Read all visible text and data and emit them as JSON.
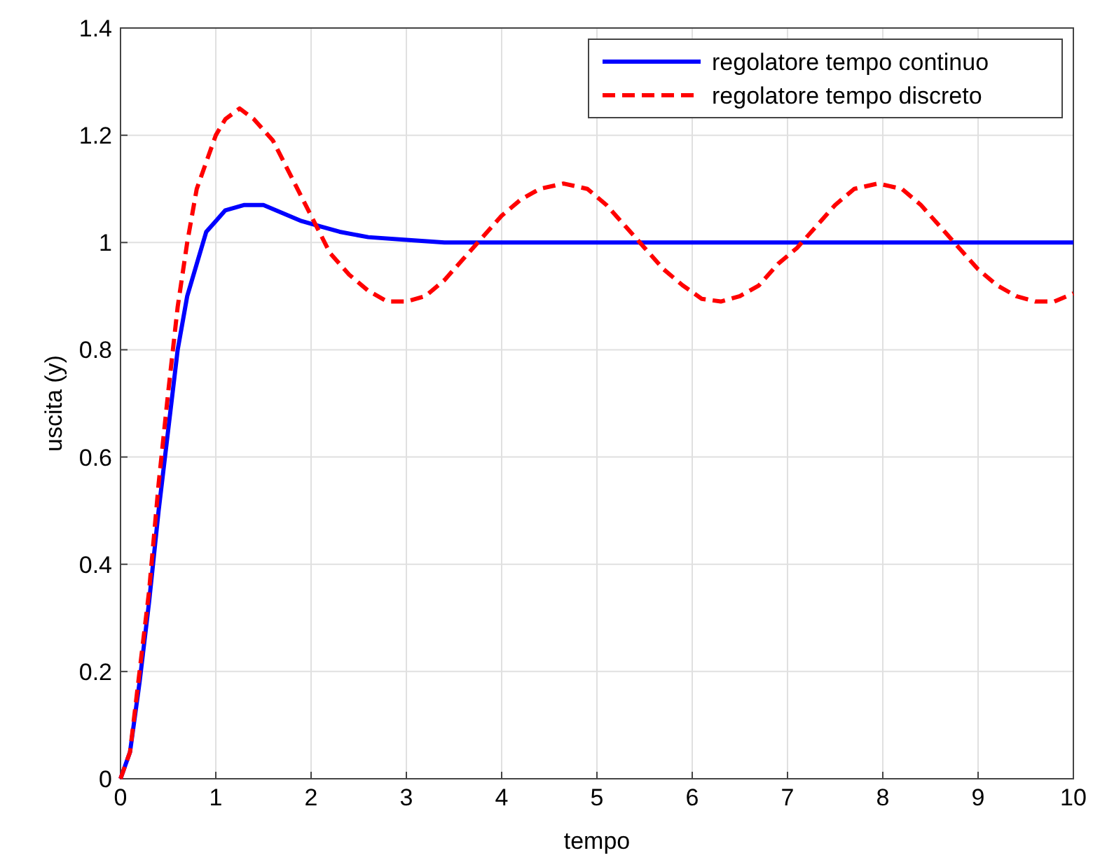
{
  "chart_data": {
    "type": "line",
    "xlabel": "tempo",
    "ylabel": "uscita (y)",
    "xlim": [
      0,
      10
    ],
    "ylim": [
      0,
      1.4
    ],
    "xticks": [
      0,
      1,
      2,
      3,
      4,
      5,
      6,
      7,
      8,
      9,
      10
    ],
    "yticks": [
      0,
      0.2,
      0.4,
      0.6,
      0.8,
      1,
      1.2,
      1.4
    ],
    "grid": true,
    "legend": "top right",
    "series": [
      {
        "name": "regolatore tempo continuo",
        "color": "#0000ff",
        "line_style": "solid",
        "x": [
          0,
          0.1,
          0.2,
          0.3,
          0.4,
          0.5,
          0.6,
          0.7,
          0.8,
          0.9,
          1.0,
          1.1,
          1.3,
          1.5,
          1.7,
          1.9,
          2.1,
          2.3,
          2.6,
          3.0,
          3.4,
          10
        ],
        "values": [
          0,
          0.05,
          0.18,
          0.33,
          0.5,
          0.65,
          0.8,
          0.9,
          0.96,
          1.02,
          1.04,
          1.06,
          1.07,
          1.07,
          1.055,
          1.04,
          1.03,
          1.02,
          1.01,
          1.005,
          1.0,
          1.0
        ]
      },
      {
        "name": "regolatore tempo discreto",
        "color": "#ff0000",
        "line_style": "dashed",
        "x": [
          0,
          0.1,
          0.2,
          0.3,
          0.4,
          0.5,
          0.6,
          0.7,
          0.8,
          0.9,
          1.0,
          1.1,
          1.25,
          1.4,
          1.6,
          1.8,
          2.0,
          2.2,
          2.4,
          2.6,
          2.8,
          3.0,
          3.2,
          3.4,
          3.6,
          3.8,
          4.0,
          4.2,
          4.4,
          4.65,
          4.9,
          5.1,
          5.3,
          5.5,
          5.7,
          5.9,
          6.1,
          6.3,
          6.5,
          6.7,
          6.9,
          7.1,
          7.3,
          7.5,
          7.7,
          7.95,
          8.2,
          8.4,
          8.6,
          8.8,
          9.0,
          9.2,
          9.4,
          9.6,
          9.8,
          10
        ],
        "values": [
          0,
          0.05,
          0.2,
          0.35,
          0.55,
          0.72,
          0.88,
          1.0,
          1.1,
          1.15,
          1.2,
          1.23,
          1.25,
          1.23,
          1.19,
          1.12,
          1.05,
          0.98,
          0.94,
          0.91,
          0.89,
          0.89,
          0.9,
          0.93,
          0.97,
          1.01,
          1.05,
          1.08,
          1.1,
          1.11,
          1.1,
          1.07,
          1.03,
          0.99,
          0.95,
          0.92,
          0.895,
          0.89,
          0.9,
          0.92,
          0.96,
          0.99,
          1.03,
          1.07,
          1.1,
          1.11,
          1.1,
          1.07,
          1.03,
          0.99,
          0.95,
          0.92,
          0.9,
          0.89,
          0.89,
          0.905
        ]
      }
    ]
  }
}
